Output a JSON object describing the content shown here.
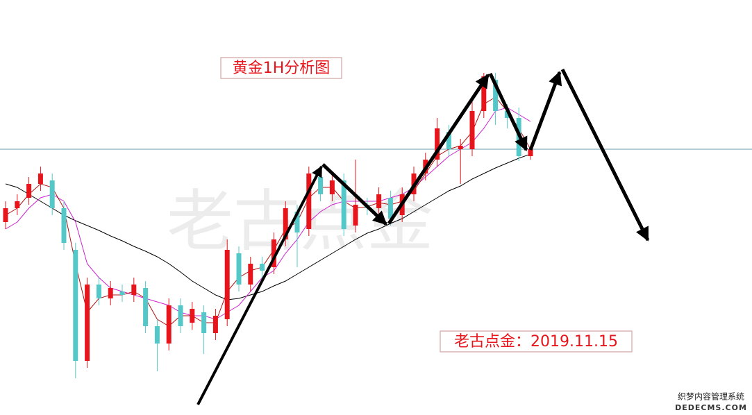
{
  "chart_data": {
    "type": "candlestick",
    "title": "黄金1H分析图",
    "annotation": "老古点金：2019.11.15",
    "watermark": "老古点金",
    "footer_watermark": [
      "织梦内容管理系统",
      "DEDECMS.COM"
    ],
    "ylim": [
      1429.7,
      1489.5
    ],
    "reference_line": 1468.0,
    "up_color": "#e8141c",
    "down_color": "#54c8c8",
    "open": [
      1457.5,
      1459.5,
      1461.0,
      1463.0,
      1463.5,
      1459.5,
      1453.5,
      1437.5,
      1448.5,
      1446.5,
      1447.5,
      1447.0,
      1448.0,
      1442.5,
      1440.0,
      1445.5,
      1443.0,
      1444.5,
      1441.5,
      1443.5,
      1453.0,
      1448.5,
      1451.5,
      1451.0,
      1455.0,
      1459.0,
      1456.5,
      1464.0,
      1461.5,
      1463.5,
      1457.0,
      1460.0,
      1459.5,
      1461.0,
      1458.5,
      1461.5,
      1464.5,
      1466.5,
      1470.5,
      1468.0,
      1468.0,
      1473.5,
      1478.0,
      1473.5,
      1472.5,
      1467.0
    ],
    "high": [
      1460.5,
      1461.5,
      1464.0,
      1465.5,
      1464.5,
      1460.5,
      1454.5,
      1449.5,
      1449.5,
      1449.0,
      1448.5,
      1449.5,
      1449.0,
      1443.5,
      1446.5,
      1446.5,
      1446.0,
      1445.5,
      1445.0,
      1455.0,
      1454.0,
      1452.5,
      1452.5,
      1456.0,
      1460.5,
      1460.0,
      1465.5,
      1465.0,
      1464.5,
      1464.5,
      1466.5,
      1461.0,
      1462.5,
      1462.0,
      1462.5,
      1465.5,
      1467.5,
      1472.5,
      1471.5,
      1469.5,
      1475.5,
      1479.0,
      1479.0,
      1474.5,
      1474.0,
      1468.5
    ],
    "low": [
      1456.5,
      1458.5,
      1460.0,
      1462.0,
      1458.5,
      1453.5,
      1435.0,
      1436.5,
      1445.5,
      1445.5,
      1446.0,
      1446.0,
      1441.5,
      1436.0,
      1439.0,
      1441.5,
      1442.0,
      1438.5,
      1440.5,
      1442.5,
      1447.5,
      1447.5,
      1449.5,
      1450.0,
      1454.0,
      1451.0,
      1455.5,
      1460.5,
      1460.5,
      1455.5,
      1456.0,
      1458.5,
      1458.5,
      1457.0,
      1457.5,
      1460.5,
      1463.5,
      1465.5,
      1467.0,
      1463.0,
      1467.0,
      1472.5,
      1471.5,
      1471.0,
      1466.3,
      1466.5
    ],
    "close": [
      1459.5,
      1460.5,
      1463.0,
      1464.5,
      1459.5,
      1454.5,
      1437.5,
      1448.5,
      1446.5,
      1448.0,
      1447.0,
      1448.5,
      1442.5,
      1440.0,
      1445.5,
      1442.5,
      1445.0,
      1441.5,
      1444.0,
      1453.5,
      1448.5,
      1451.5,
      1450.5,
      1455.0,
      1459.5,
      1456.0,
      1464.5,
      1461.5,
      1463.5,
      1456.5,
      1460.0,
      1459.5,
      1461.5,
      1458.0,
      1461.5,
      1464.5,
      1466.5,
      1471.0,
      1468.0,
      1468.5,
      1473.5,
      1478.5,
      1473.5,
      1472.5,
      1467.0,
      1468.0
    ],
    "series": [
      {
        "color": "#000000",
        "values": [
          1463.0,
          1462.5,
          1461.5,
          1460.5,
          1459.5,
          1458.5,
          1457.7,
          1457.0,
          1456.3,
          1455.5,
          1454.8,
          1454.0,
          1453.3,
          1452.5,
          1451.5,
          1450.3,
          1449.0,
          1448.0,
          1447.0,
          1446.3,
          1446.5,
          1447.0,
          1447.5,
          1448.3,
          1449.0,
          1450.0,
          1451.0,
          1452.0,
          1453.0,
          1454.0,
          1455.0,
          1455.9,
          1456.5,
          1457.3,
          1458.0,
          1459.0,
          1460.0,
          1461.0,
          1462.0,
          1462.7,
          1463.7,
          1464.5,
          1465.3,
          1466.0,
          1466.7,
          1467.3
        ]
      },
      {
        "color": "#cc22cc",
        "values": [
          1456.5,
          1457.5,
          1459.5,
          1461.0,
          1461.5,
          1460.5,
          1457.5,
          1451.5,
          1449.5,
          1448.0,
          1447.5,
          1447.0,
          1446.5,
          1446.0,
          1445.5,
          1444.5,
          1444.0,
          1444.0,
          1443.5,
          1444.5,
          1445.5,
          1447.5,
          1449.5,
          1450.5,
          1453.0,
          1455.0,
          1457.5,
          1459.0,
          1460.0,
          1460.5,
          1460.5,
          1460.5,
          1460.5,
          1461.0,
          1461.5,
          1462.5,
          1464.0,
          1465.5,
          1467.0,
          1468.0,
          1469.0,
          1471.0,
          1473.5,
          1474.0,
          1473.0,
          1472.0
        ]
      },
      {
        "color": "#b01010",
        "values": [
          1458.5,
          1459.5,
          1461.5,
          1463.0,
          1462.5,
          1459.5,
          1451.5,
          1444.5,
          1446.5,
          1447.0,
          1447.0,
          1447.5,
          1446.5,
          1443.5,
          1442.5,
          1444.0,
          1444.0,
          1443.0,
          1443.0,
          1447.5,
          1449.5,
          1450.5,
          1451.0,
          1453.5,
          1456.5,
          1457.5,
          1461.0,
          1462.5,
          1462.5,
          1460.5,
          1459.5,
          1459.7,
          1460.3,
          1460.0,
          1460.5,
          1462.0,
          1464.5,
          1467.0,
          1468.0,
          1468.5,
          1470.5,
          1474.5,
          1475.5,
          1473.5,
          1471.0,
          1468.0
        ]
      }
    ]
  }
}
